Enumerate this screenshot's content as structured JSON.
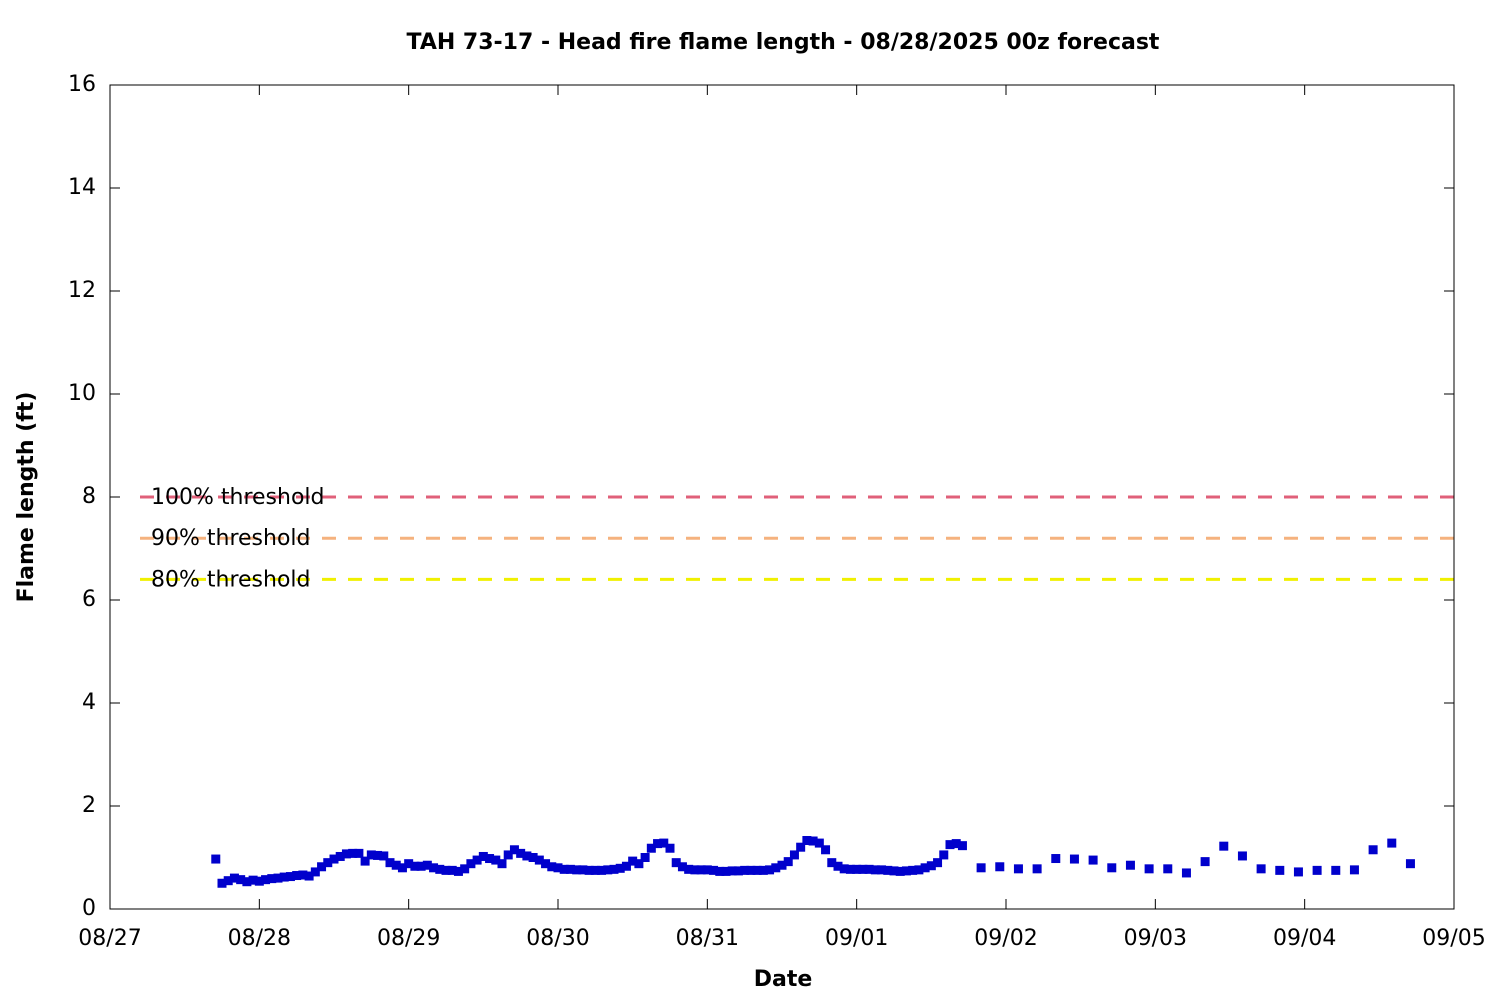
{
  "chart_data": {
    "type": "scatter",
    "title": "TAH 73-17 - Head fire flame length - 08/28/2025 00z forecast",
    "xlabel": "Date",
    "ylabel": "Flame length (ft)",
    "xlim": [
      0,
      216
    ],
    "ylim": [
      0,
      16
    ],
    "xticks": [
      {
        "value": 0,
        "label": "08/27"
      },
      {
        "value": 24,
        "label": "08/28"
      },
      {
        "value": 48,
        "label": "08/29"
      },
      {
        "value": 72,
        "label": "08/30"
      },
      {
        "value": 96,
        "label": "08/31"
      },
      {
        "value": 120,
        "label": "09/01"
      },
      {
        "value": 144,
        "label": "09/02"
      },
      {
        "value": 168,
        "label": "09/03"
      },
      {
        "value": 192,
        "label": "09/04"
      },
      {
        "value": 216,
        "label": "09/05"
      }
    ],
    "yticks": [
      0,
      2,
      4,
      6,
      8,
      10,
      12,
      14,
      16
    ],
    "thresholds": [
      {
        "name": "100% threshold",
        "value": 8,
        "color": "#e0607a"
      },
      {
        "name": "90% threshold",
        "value": 7.2,
        "color": "#f5b27e"
      },
      {
        "name": "80% threshold",
        "value": 6.4,
        "color": "#f0f000"
      }
    ],
    "series": [
      {
        "color": "#0000cc",
        "x": [
          17,
          18,
          19,
          20,
          21,
          22,
          23,
          24,
          25,
          26,
          27,
          28,
          29,
          30,
          31,
          32,
          33,
          34,
          35,
          36,
          37,
          38,
          39,
          40,
          41,
          42,
          43,
          44,
          45,
          46,
          47,
          48,
          49,
          50,
          51,
          52,
          53,
          54,
          55,
          56,
          57,
          58,
          59,
          60,
          61,
          62,
          63,
          64,
          65,
          66,
          67,
          68,
          69,
          70,
          71,
          72,
          73,
          74,
          75,
          76,
          77,
          78,
          79,
          80,
          81,
          82,
          83,
          84,
          85,
          86,
          87,
          88,
          89,
          90,
          91,
          92,
          93,
          94,
          95,
          96,
          97,
          98,
          99,
          100,
          101,
          102,
          103,
          104,
          105,
          106,
          107,
          108,
          109,
          110,
          111,
          112,
          113,
          114,
          115,
          116,
          117,
          118,
          119,
          120,
          121,
          122,
          123,
          124,
          125,
          126,
          127,
          128,
          129,
          130,
          131,
          132,
          133,
          134,
          135,
          136,
          137,
          140,
          143,
          146,
          149,
          152,
          155,
          158,
          161,
          164,
          167,
          170,
          173,
          176,
          179,
          182,
          185,
          188,
          191,
          194,
          197,
          200,
          203,
          206,
          209
        ],
        "values": [
          0.97,
          0.5,
          0.55,
          0.6,
          0.57,
          0.53,
          0.56,
          0.54,
          0.57,
          0.59,
          0.6,
          0.62,
          0.63,
          0.65,
          0.66,
          0.64,
          0.72,
          0.82,
          0.9,
          0.97,
          1.02,
          1.07,
          1.08,
          1.08,
          0.93,
          1.05,
          1.04,
          1.03,
          0.9,
          0.85,
          0.8,
          0.88,
          0.83,
          0.83,
          0.85,
          0.8,
          0.77,
          0.75,
          0.75,
          0.73,
          0.78,
          0.88,
          0.95,
          1.02,
          0.98,
          0.95,
          0.88,
          1.05,
          1.15,
          1.08,
          1.03,
          1.0,
          0.95,
          0.88,
          0.82,
          0.8,
          0.77,
          0.77,
          0.76,
          0.76,
          0.75,
          0.75,
          0.75,
          0.76,
          0.77,
          0.79,
          0.83,
          0.93,
          0.88,
          1.0,
          1.18,
          1.27,
          1.28,
          1.18,
          0.9,
          0.82,
          0.77,
          0.76,
          0.76,
          0.76,
          0.75,
          0.73,
          0.73,
          0.74,
          0.74,
          0.75,
          0.75,
          0.75,
          0.75,
          0.76,
          0.8,
          0.85,
          0.92,
          1.05,
          1.2,
          1.33,
          1.32,
          1.28,
          1.15,
          0.9,
          0.83,
          0.78,
          0.77,
          0.77,
          0.77,
          0.77,
          0.76,
          0.76,
          0.75,
          0.74,
          0.73,
          0.74,
          0.75,
          0.76,
          0.8,
          0.84,
          0.9,
          1.05,
          1.25,
          1.27,
          1.23,
          0.8,
          0.82,
          0.78,
          0.78,
          0.98,
          0.97,
          0.95,
          0.8,
          0.85,
          0.78,
          0.78,
          0.7,
          0.92,
          1.22,
          1.03,
          0.78,
          0.75,
          0.72,
          0.75,
          0.75,
          0.76,
          1.15,
          1.28,
          0.88
        ]
      }
    ]
  }
}
